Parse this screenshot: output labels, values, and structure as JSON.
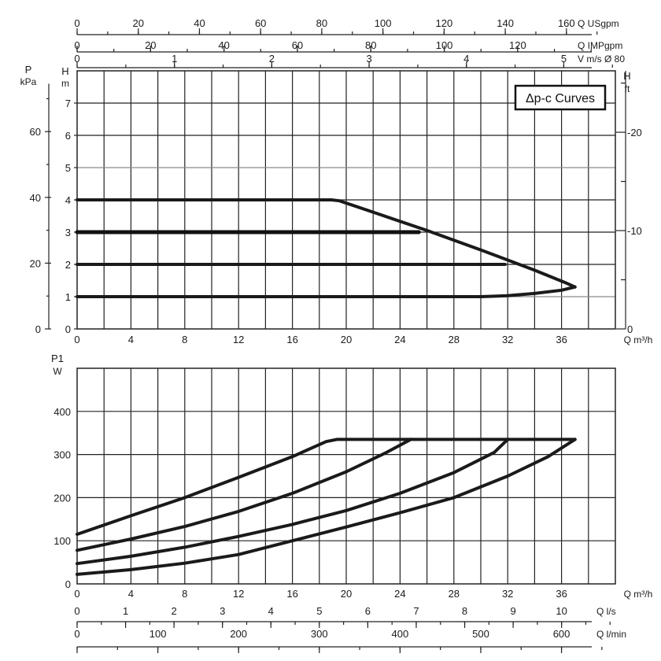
{
  "chart_data": [
    {
      "type": "line",
      "badge": "Δp-c Curves",
      "x": {
        "label": "Q m³/h",
        "range": [
          0,
          40
        ],
        "ticks": [
          0,
          4,
          8,
          12,
          16,
          20,
          24,
          28,
          32,
          36
        ]
      },
      "y_left_pressure": {
        "label_top": "P",
        "label_unit": "kPa",
        "ticks": [
          0,
          20,
          40,
          60
        ]
      },
      "y_left_head": {
        "label_top": "H",
        "label_unit": "m",
        "range": [
          0,
          8
        ],
        "ticks": [
          0,
          1,
          2,
          3,
          4,
          5,
          6,
          7
        ]
      },
      "y_right_head": {
        "label_top": "H",
        "label_unit": "ft",
        "ticks": [
          0,
          10,
          20
        ]
      },
      "top_axes": [
        {
          "label": "Q USgpm",
          "max": 176,
          "ticks": [
            0,
            20,
            40,
            60,
            80,
            100,
            120,
            140,
            160
          ]
        },
        {
          "label": "Q IMPgpm",
          "max": 146.6,
          "ticks": [
            0,
            20,
            40,
            60,
            80,
            100,
            120
          ]
        },
        {
          "label": "V m/s Ø 80",
          "max": 5.53,
          "ticks": [
            0,
            1,
            2,
            3,
            4,
            5
          ]
        }
      ],
      "series": [
        {
          "x": [
            0,
            18.3,
            18.9,
            19.5,
            22,
            26,
            30,
            34,
            36.2,
            37
          ],
          "y": [
            4,
            4,
            4,
            3.97,
            3.62,
            3.05,
            2.45,
            1.82,
            1.45,
            1.3
          ]
        },
        {
          "x": [
            0,
            25.4
          ],
          "y": [
            3,
            3
          ]
        },
        {
          "x": [
            0,
            31.8
          ],
          "y": [
            2,
            2
          ]
        },
        {
          "x": [
            0,
            30,
            32,
            34,
            36,
            37
          ],
          "y": [
            1,
            1,
            1.03,
            1.1,
            1.2,
            1.3
          ]
        }
      ]
    },
    {
      "type": "line",
      "x": {
        "label": "Q m³/h",
        "range": [
          0,
          40
        ],
        "ticks": [
          0,
          4,
          8,
          12,
          16,
          20,
          24,
          28,
          32,
          36
        ]
      },
      "y": {
        "label_top": "P1",
        "label_unit": "W",
        "range": [
          0,
          500
        ],
        "ticks": [
          0,
          100,
          200,
          300,
          400
        ]
      },
      "bottom_axes": [
        {
          "label": "Q l/s",
          "max": 11.11,
          "ticks": [
            0,
            1,
            2,
            3,
            4,
            5,
            6,
            7,
            8,
            9,
            10
          ]
        },
        {
          "label": "Q l/min",
          "max": 666.7,
          "ticks": [
            0,
            100,
            200,
            300,
            400,
            500,
            600
          ]
        }
      ],
      "series": [
        {
          "x": [
            0,
            4,
            8,
            12,
            16,
            18.5,
            19.3,
            37
          ],
          "y": [
            115,
            158,
            200,
            247,
            295,
            330,
            335,
            335
          ]
        },
        {
          "x": [
            0,
            4,
            8,
            12,
            16,
            20,
            23,
            24.8
          ],
          "y": [
            78,
            104,
            133,
            168,
            210,
            260,
            305,
            335
          ]
        },
        {
          "x": [
            0,
            4,
            8,
            12,
            16,
            20,
            24,
            28,
            31,
            32
          ],
          "y": [
            47,
            64,
            85,
            110,
            138,
            170,
            210,
            258,
            305,
            335
          ]
        },
        {
          "x": [
            0,
            4,
            8,
            12,
            16,
            20,
            24,
            28,
            32,
            35,
            37
          ],
          "y": [
            22,
            33,
            48,
            68,
            100,
            132,
            165,
            200,
            250,
            295,
            335
          ]
        }
      ]
    }
  ]
}
